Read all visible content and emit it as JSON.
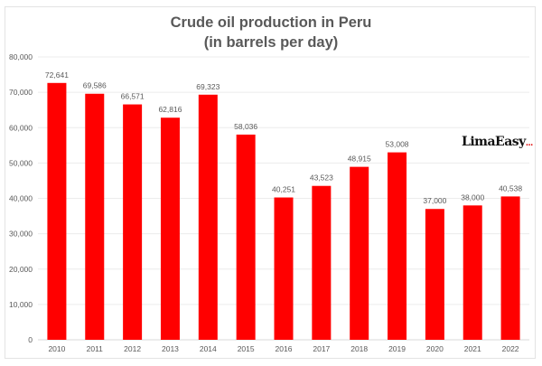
{
  "chart_data": {
    "type": "bar",
    "title": "Crude oil production in Peru",
    "subtitle": "(in barrels per day)",
    "xlabel": "",
    "ylabel": "",
    "categories": [
      "2010",
      "2011",
      "2012",
      "2013",
      "2014",
      "2015",
      "2016",
      "2017",
      "2018",
      "2019",
      "2020",
      "2021",
      "2022"
    ],
    "values": [
      72641,
      69586,
      66571,
      62816,
      69323,
      58036,
      40251,
      43523,
      48915,
      53008,
      37000,
      38000,
      40538
    ],
    "data_labels": [
      "72,641",
      "69,586",
      "66,571",
      "62,816",
      "69,323",
      "58,036",
      "40,251",
      "43,523",
      "48,915",
      "53,008",
      "37,000",
      "38,000",
      "40,538"
    ],
    "ylim": [
      0,
      80000
    ],
    "yticks": [
      0,
      10000,
      20000,
      30000,
      40000,
      50000,
      60000,
      70000,
      80000
    ],
    "ytick_labels": [
      "0",
      "10,000",
      "20,000",
      "30,000",
      "40,000",
      "50,000",
      "60,000",
      "70,000",
      "80,000"
    ],
    "grid": true,
    "legend": "none",
    "bar_color": "#ff0000"
  },
  "logo": {
    "text": "LimaEasy",
    "suffix": "..."
  }
}
